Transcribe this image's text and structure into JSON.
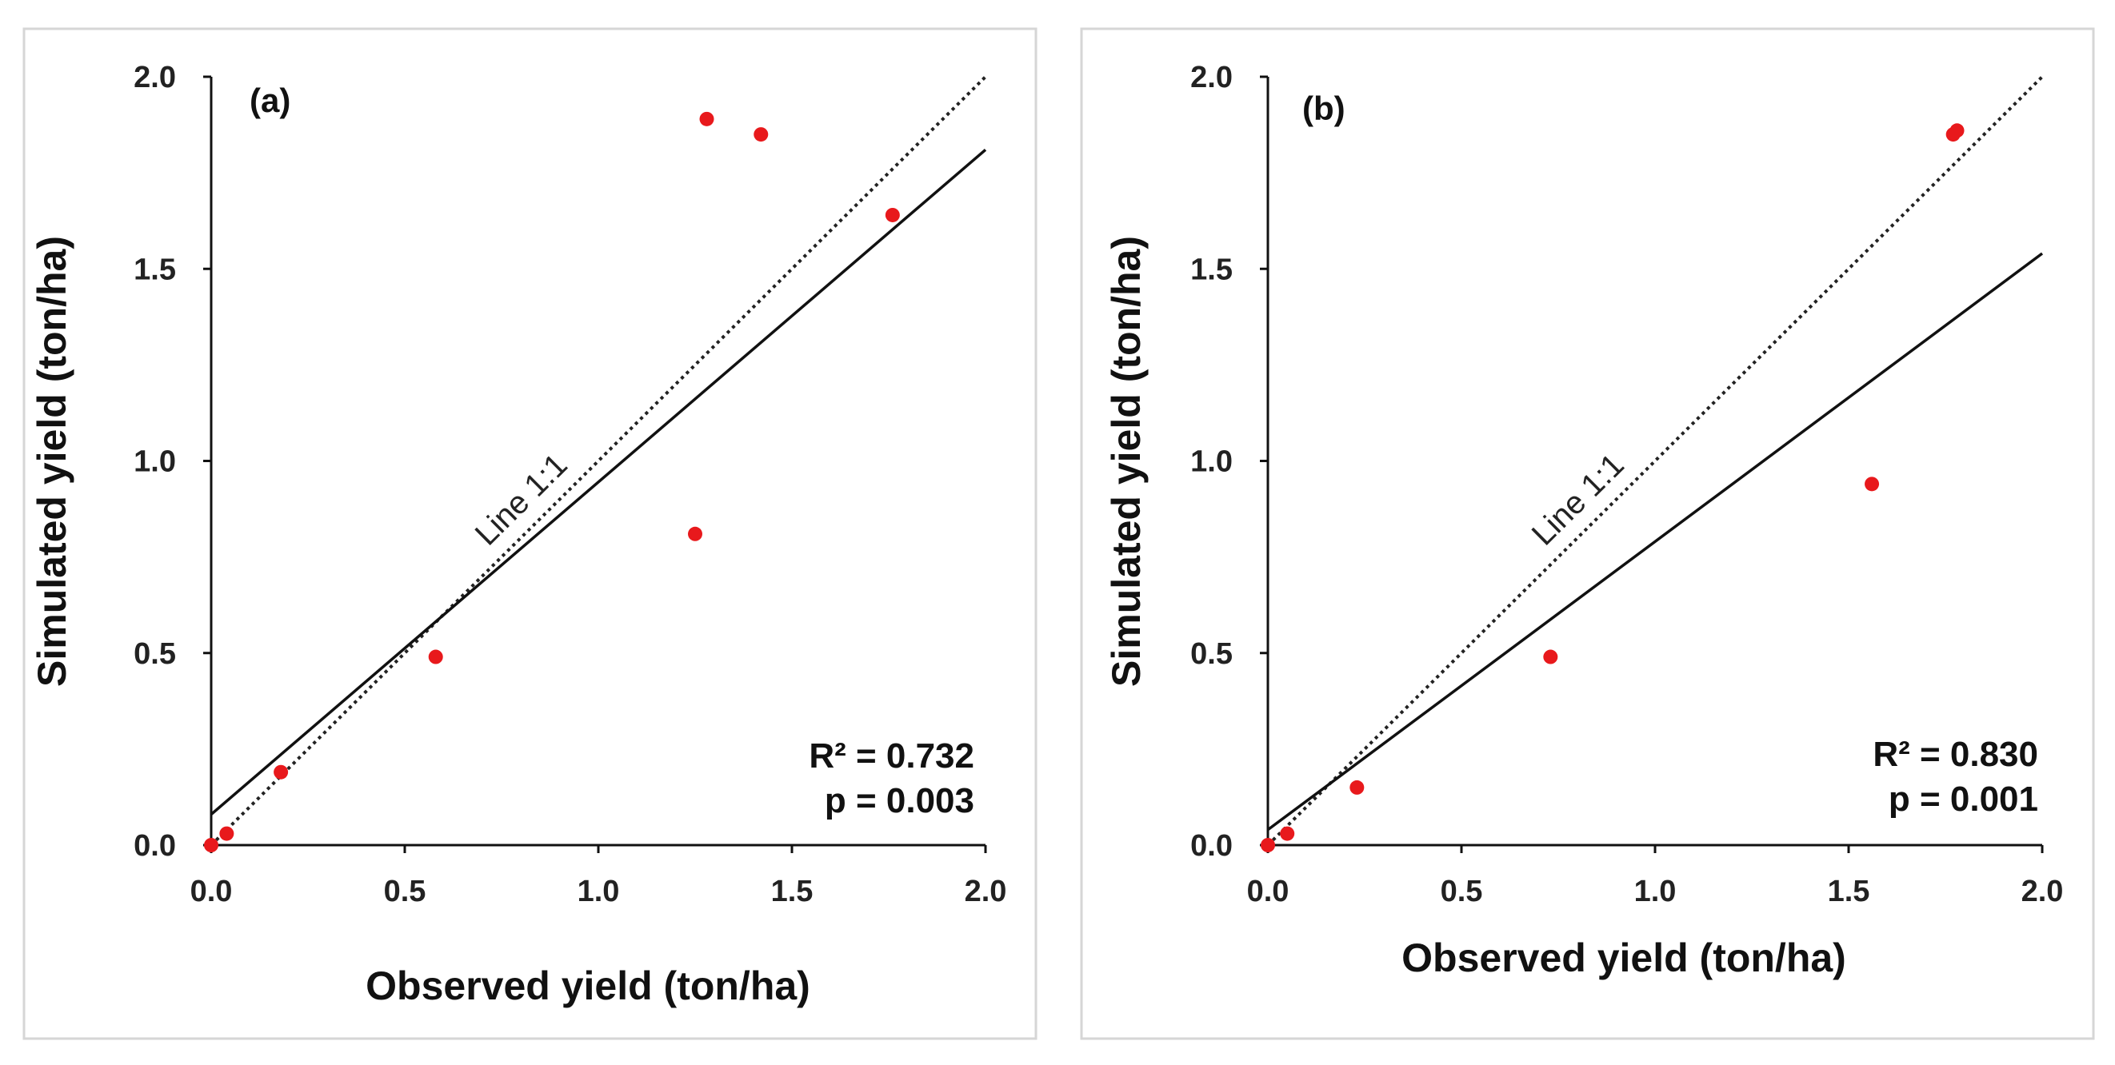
{
  "chart_data": [
    {
      "type": "scatter",
      "panel_label": "(a)",
      "xlabel": "Observed yield (ton/ha)",
      "ylabel": "Simulated yield (ton/ha)",
      "xlim": [
        0,
        2
      ],
      "ylim": [
        0,
        2
      ],
      "ticks": [
        "0.0",
        "0.5",
        "1.0",
        "1.5",
        "2.0"
      ],
      "points": [
        {
          "x": 0.0,
          "y": 0.0
        },
        {
          "x": 0.04,
          "y": 0.03
        },
        {
          "x": 0.18,
          "y": 0.19
        },
        {
          "x": 0.58,
          "y": 0.49
        },
        {
          "x": 1.25,
          "y": 0.81
        },
        {
          "x": 1.28,
          "y": 1.89
        },
        {
          "x": 1.42,
          "y": 1.85
        },
        {
          "x": 1.76,
          "y": 1.64
        }
      ],
      "regression": {
        "intercept": 0.08,
        "slope": 0.865
      },
      "identity_label": "Line 1:1",
      "r2_text": "R² = 0.732",
      "p_text": "p = 0.003",
      "point_color": "#e8191c"
    },
    {
      "type": "scatter",
      "panel_label": "(b)",
      "xlabel": "Observed yield (ton/ha)",
      "ylabel": "Simulated yield (ton/ha)",
      "xlim": [
        0,
        2
      ],
      "ylim": [
        0,
        2
      ],
      "ticks": [
        "0.0",
        "0.5",
        "1.0",
        "1.5",
        "2.0"
      ],
      "points": [
        {
          "x": 0.0,
          "y": 0.0
        },
        {
          "x": 0.05,
          "y": 0.03
        },
        {
          "x": 0.23,
          "y": 0.15
        },
        {
          "x": 0.73,
          "y": 0.49
        },
        {
          "x": 1.56,
          "y": 0.94
        },
        {
          "x": 1.77,
          "y": 1.85
        },
        {
          "x": 1.78,
          "y": 1.86
        }
      ],
      "regression": {
        "intercept": 0.04,
        "slope": 0.75
      },
      "identity_label": "Line 1:1",
      "r2_text": "R² = 0.830",
      "p_text": "p = 0.001",
      "point_color": "#e8191c"
    }
  ]
}
